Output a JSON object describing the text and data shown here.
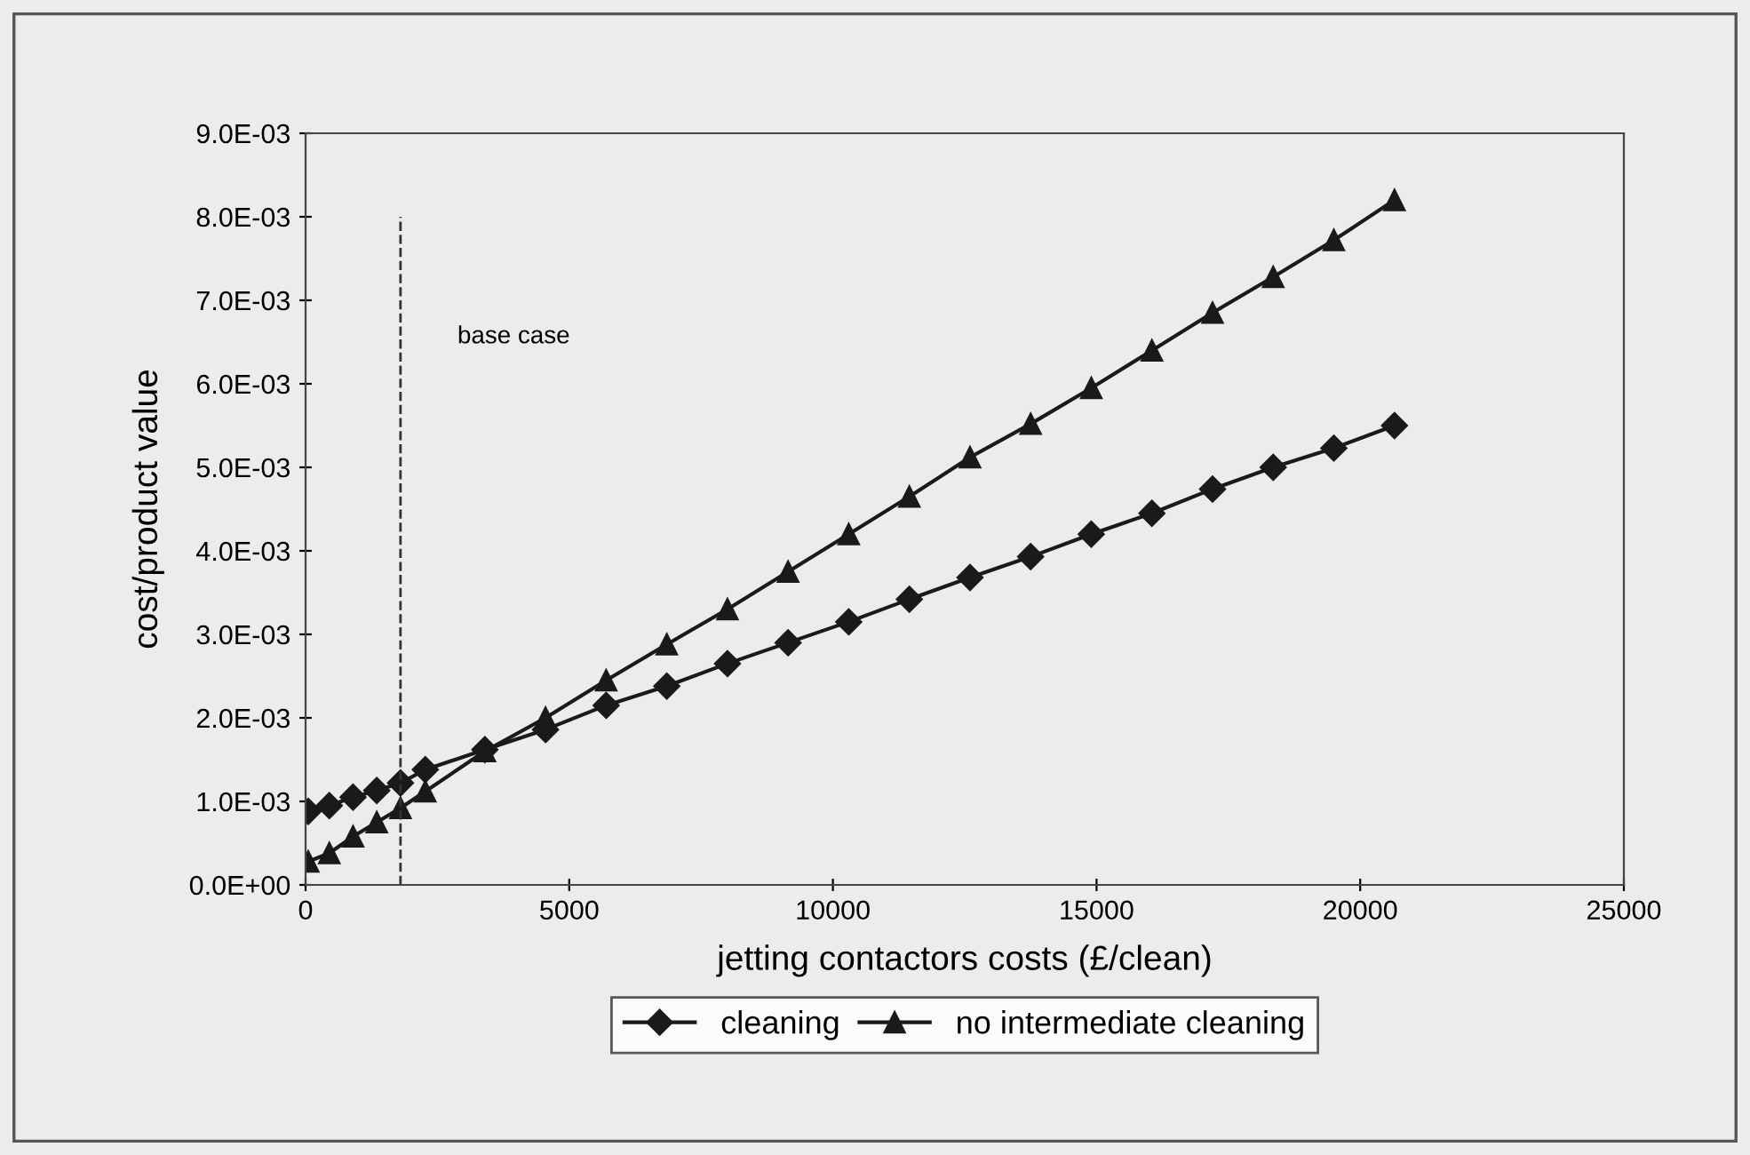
{
  "chart_data": {
    "type": "line",
    "xlabel": "jetting contactors costs (£/clean)",
    "ylabel": "cost/product value",
    "x": [
      50,
      450,
      900,
      1350,
      1800,
      2270,
      3400,
      4550,
      5700,
      6850,
      8000,
      9150,
      10300,
      11450,
      12600,
      13750,
      14900,
      16050,
      17200,
      18350,
      19500,
      20650
    ],
    "series": [
      {
        "name": "cleaning",
        "color": "#1a1a1a",
        "marker": "diamond",
        "values": [
          0.00088,
          0.00095,
          0.00105,
          0.00113,
          0.00122,
          0.00138,
          0.00162,
          0.00186,
          0.00215,
          0.00238,
          0.00265,
          0.0029,
          0.00315,
          0.00342,
          0.00368,
          0.00393,
          0.0042,
          0.00445,
          0.00474,
          0.005,
          0.00523,
          0.0055
        ]
      },
      {
        "name": "no intermediate cleaning",
        "color": "#1a1a1a",
        "marker": "triangle",
        "values": [
          0.00028,
          0.00038,
          0.00058,
          0.00075,
          0.00092,
          0.00112,
          0.0016,
          0.002,
          0.00245,
          0.00288,
          0.0033,
          0.00375,
          0.0042,
          0.00465,
          0.00512,
          0.00552,
          0.00595,
          0.0064,
          0.00685,
          0.00728,
          0.00772,
          0.0082
        ]
      }
    ],
    "xlim": [
      0,
      25000
    ],
    "xticks": [
      0,
      5000,
      10000,
      15000,
      20000,
      25000
    ],
    "ylim": [
      0,
      0.009
    ],
    "yticks": [
      {
        "value": 0,
        "label": "0.0E+00"
      },
      {
        "value": 0.001,
        "label": "1.0E-03"
      },
      {
        "value": 0.002,
        "label": "2.0E-03"
      },
      {
        "value": 0.003,
        "label": "3.0E-03"
      },
      {
        "value": 0.004,
        "label": "4.0E-03"
      },
      {
        "value": 0.005,
        "label": "5.0E-03"
      },
      {
        "value": 0.006,
        "label": "6.0E-03"
      },
      {
        "value": 0.007,
        "label": "7.0E-03"
      },
      {
        "value": 0.008,
        "label": "8.0E-03"
      },
      {
        "value": 0.009,
        "label": "9.0E-03"
      }
    ],
    "ref_lines": [
      {
        "axis": "x",
        "value": 1800,
        "label": "base case",
        "color": "#333333",
        "line_style": "dashed"
      }
    ],
    "grid": false,
    "legend": "bottom",
    "line_style": "solid"
  }
}
